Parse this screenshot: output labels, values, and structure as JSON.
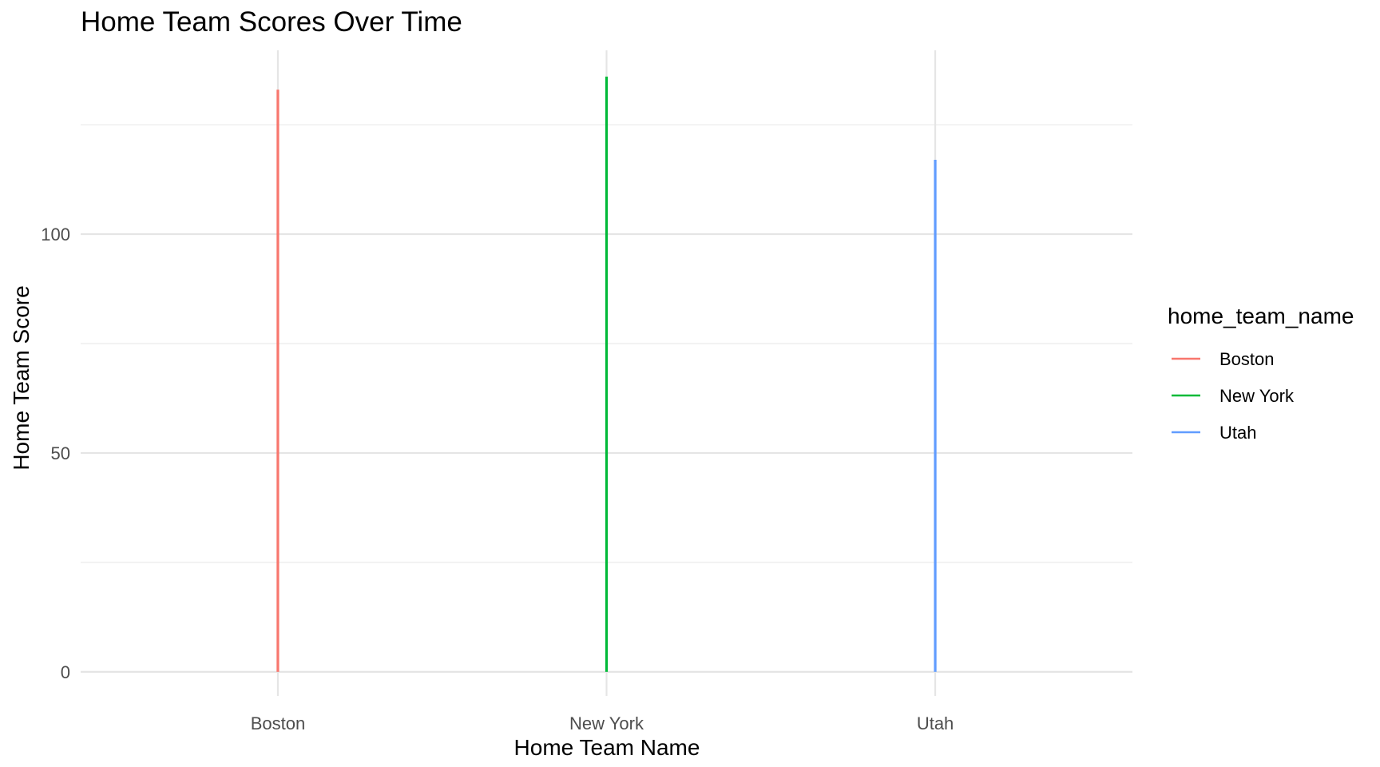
{
  "chart_data": {
    "type": "line",
    "title": "Home Team Scores Over Time",
    "xlabel": "Home Team Name",
    "ylabel": "Home Team Score",
    "categories": [
      "Boston",
      "New York",
      "Utah"
    ],
    "ylim": [
      -5.5,
      142
    ],
    "y_ticks": [
      0,
      50,
      100
    ],
    "grid": true,
    "legend": {
      "title": "home_team_name",
      "position": "right"
    },
    "series": [
      {
        "name": "Boston",
        "category": "Boston",
        "color": "#F8766D",
        "y_min": 0,
        "y_max": 133
      },
      {
        "name": "New York",
        "category": "New York",
        "color": "#00BA38",
        "y_min": 0,
        "y_max": 136
      },
      {
        "name": "Utah",
        "category": "Utah",
        "color": "#619CFF",
        "y_min": 0,
        "y_max": 117
      }
    ]
  }
}
